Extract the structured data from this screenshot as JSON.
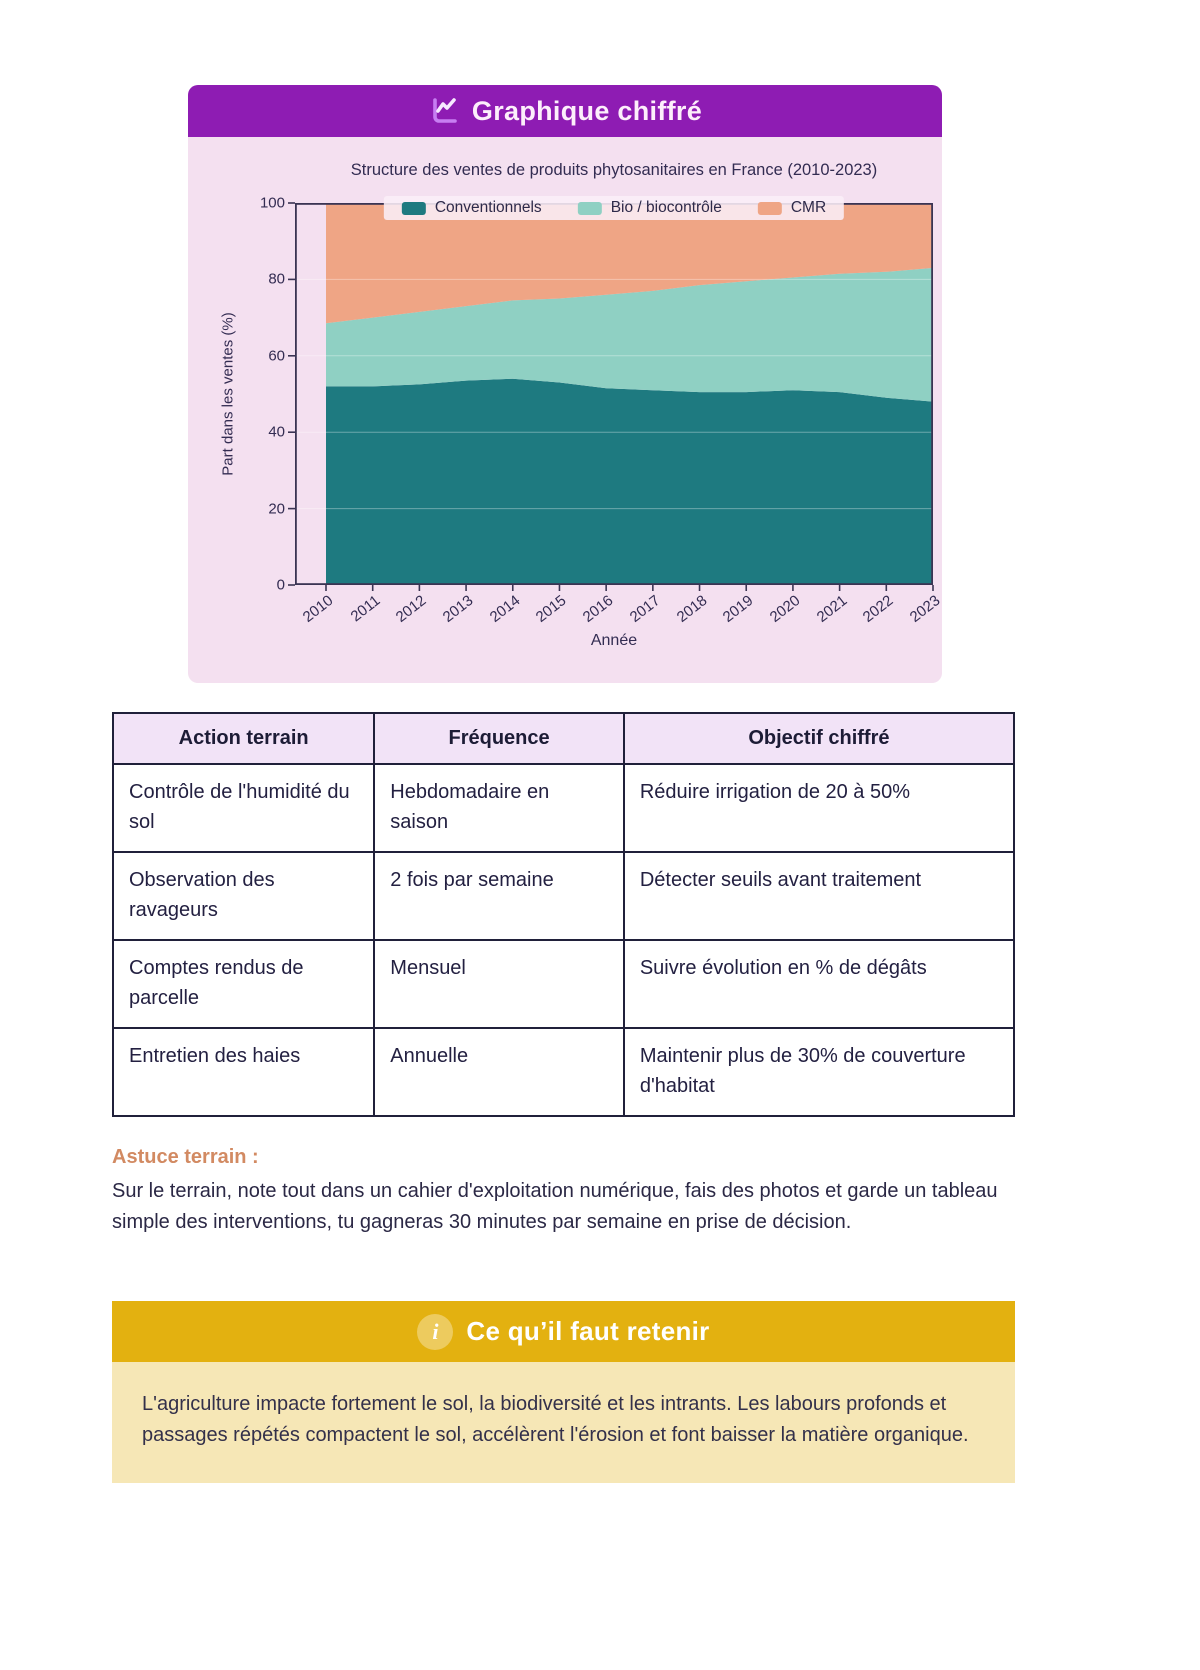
{
  "chart_card": {
    "header_title": "Graphique chiffré",
    "header_icon": "line-chart-icon"
  },
  "chart_data": {
    "type": "area",
    "stacked": true,
    "title": "Structure des ventes de produits phytosanitaires en France (2010-2023)",
    "xlabel": "Année",
    "ylabel": "Part dans les ventes (%)",
    "ylim": [
      0,
      100
    ],
    "yticks": [
      0,
      20,
      40,
      60,
      80,
      100
    ],
    "grid": true,
    "legend_position": "top",
    "x": [
      "2010",
      "2011",
      "2012",
      "2013",
      "2014",
      "2015",
      "2016",
      "2017",
      "2018",
      "2019",
      "2020",
      "2021",
      "2022",
      "2023"
    ],
    "series": [
      {
        "name": "Conventionnels",
        "color": "#1e7a80",
        "values": [
          52,
          52,
          52.5,
          53.5,
          54,
          53,
          51.5,
          51,
          50.5,
          50.5,
          51,
          50.5,
          49,
          48
        ]
      },
      {
        "name": "Bio / biocontrôle",
        "color": "#8fd0c3",
        "values": [
          16.5,
          18,
          19,
          19.5,
          20.5,
          22,
          24.5,
          26,
          28,
          29,
          29.5,
          31,
          33,
          35
        ]
      },
      {
        "name": "CMR",
        "color": "#efa585",
        "values": [
          31.5,
          30,
          28.5,
          27,
          25.5,
          25,
          24,
          23,
          21.5,
          20.5,
          19.5,
          18.5,
          18,
          17
        ]
      }
    ]
  },
  "table": {
    "headers": [
      "Action terrain",
      "Fréquence",
      "Objectif chiffré"
    ],
    "rows": [
      [
        "Contrôle de l'humidité du sol",
        "Hebdomadaire en saison",
        "Réduire irrigation de 20 à 50%"
      ],
      [
        "Observation des ravageurs",
        "2 fois par semaine",
        "Détecter seuils avant traitement"
      ],
      [
        "Comptes rendus de parcelle",
        "Mensuel",
        "Suivre évolution en % de dégâts"
      ],
      [
        "Entretien des haies",
        "Annuelle",
        "Maintenir plus de 30% de couverture d'habitat"
      ]
    ]
  },
  "astuce": {
    "title": "Astuce terrain :",
    "body": "Sur le terrain, note tout dans un cahier d'exploitation numérique, fais des photos et garde un tableau simple des interventions, tu gagneras 30 minutes par semaine en prise de décision."
  },
  "callout": {
    "icon": "info-icon",
    "title": "Ce qu’il faut retenir",
    "body": "L'agriculture impacte fortement le sol, la biodiversité et les intrants. Les labours profonds et passages répétés compactent le sol, accélèrent l'érosion et font baisser la matière organique."
  },
  "colors": {
    "header_purple": "#8e1cb3",
    "card_pink": "#f4e0f0",
    "axis_ink": "#3a3453",
    "table_border": "#20203a",
    "astuce_orange": "#d28a62",
    "callout_gold": "#e3b110",
    "callout_light_yellow": "#f6e7b6",
    "series_conventionnels": "#1e7a80",
    "series_bio": "#8fd0c3",
    "series_cmr": "#efa585"
  }
}
